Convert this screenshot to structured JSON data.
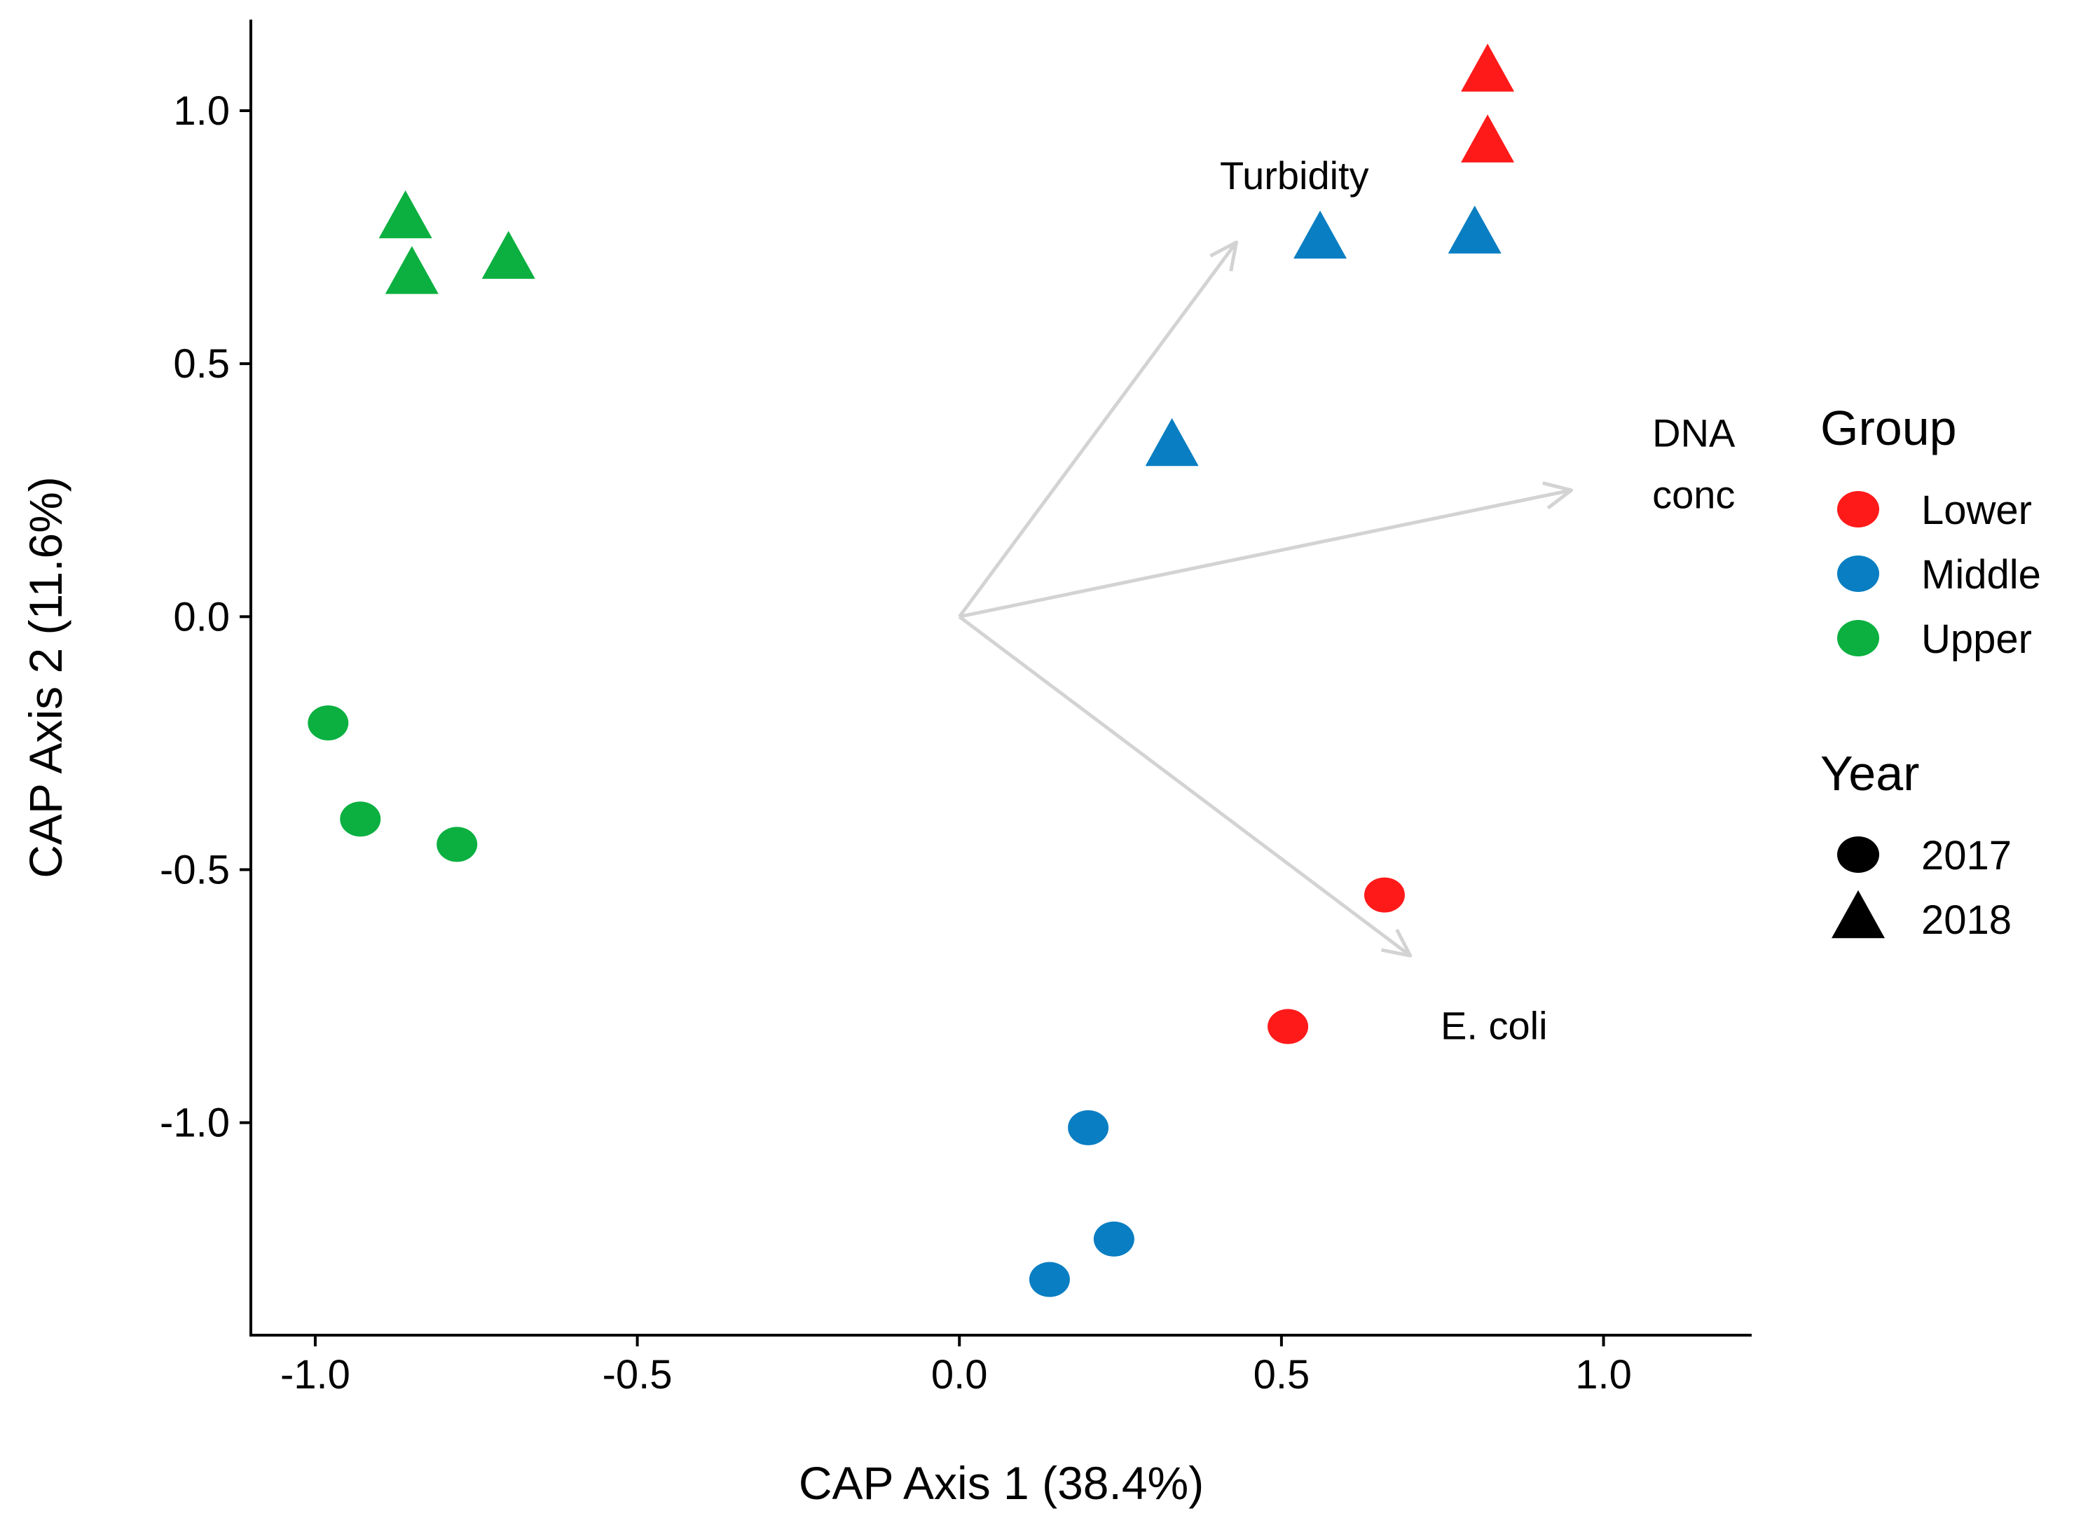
{
  "chart_data": {
    "type": "scatter",
    "title": "",
    "xlabel": "CAP Axis 1 (38.4%)",
    "ylabel": "CAP Axis 2 (11.6%)",
    "xlim": [
      -1.1,
      1.23
    ],
    "ylim": [
      -1.42,
      1.18
    ],
    "xticks": [
      -1.0,
      -0.5,
      0.0,
      0.5,
      1.0
    ],
    "xtick_labels": [
      "-1.0",
      "-0.5",
      "0.0",
      "0.5",
      "1.0"
    ],
    "yticks": [
      -1.0,
      -0.5,
      0.0,
      0.5,
      1.0
    ],
    "ytick_labels": [
      "-1.0",
      "-0.5",
      "0.0",
      "0.5",
      "1.0"
    ],
    "grid": false,
    "groups": [
      {
        "name": "Lower",
        "color": "#ff1a1a"
      },
      {
        "name": "Middle",
        "color": "#0a7ec2"
      },
      {
        "name": "Upper",
        "color": "#0bb040"
      }
    ],
    "years": [
      {
        "name": "2017",
        "shape": "circle"
      },
      {
        "name": "2018",
        "shape": "triangle"
      }
    ],
    "points": [
      {
        "group": "Lower",
        "year": "2018",
        "x": 0.82,
        "y": 1.07
      },
      {
        "group": "Lower",
        "year": "2018",
        "x": 0.82,
        "y": 0.93
      },
      {
        "group": "Lower",
        "year": "2017",
        "x": 0.66,
        "y": -0.55
      },
      {
        "group": "Lower",
        "year": "2017",
        "x": 0.51,
        "y": -0.81
      },
      {
        "group": "Middle",
        "year": "2018",
        "x": 0.56,
        "y": 0.74
      },
      {
        "group": "Middle",
        "year": "2018",
        "x": 0.8,
        "y": 0.75
      },
      {
        "group": "Middle",
        "year": "2018",
        "x": 0.33,
        "y": 0.33
      },
      {
        "group": "Middle",
        "year": "2017",
        "x": 0.2,
        "y": -1.01
      },
      {
        "group": "Middle",
        "year": "2017",
        "x": 0.24,
        "y": -1.23
      },
      {
        "group": "Middle",
        "year": "2017",
        "x": 0.14,
        "y": -1.31
      },
      {
        "group": "Upper",
        "year": "2018",
        "x": -0.86,
        "y": 0.78
      },
      {
        "group": "Upper",
        "year": "2018",
        "x": -0.85,
        "y": 0.67
      },
      {
        "group": "Upper",
        "year": "2018",
        "x": -0.7,
        "y": 0.7
      },
      {
        "group": "Upper",
        "year": "2017",
        "x": -0.98,
        "y": -0.21
      },
      {
        "group": "Upper",
        "year": "2017",
        "x": -0.93,
        "y": -0.4
      },
      {
        "group": "Upper",
        "year": "2017",
        "x": -0.78,
        "y": -0.45
      }
    ],
    "vectors": [
      {
        "name": "Turbidity",
        "label_lines": [
          "Turbidity"
        ],
        "x": 0.43,
        "y": 0.74,
        "label_x": 0.52,
        "label_y": 0.87
      },
      {
        "name": "DNA conc",
        "label_lines": [
          "DNA",
          "conc"
        ],
        "x": 0.95,
        "y": 0.25,
        "label_x": 1.14,
        "label_y": 0.3
      },
      {
        "name": "E. coli",
        "label_lines": [
          "E. coli"
        ],
        "x": 0.7,
        "y": -0.67,
        "label_x": 0.83,
        "label_y": -0.81
      }
    ],
    "vector_color": "#d3d3d3",
    "legend": {
      "placement": "right",
      "group_title": "Group",
      "year_title": "Year"
    }
  }
}
